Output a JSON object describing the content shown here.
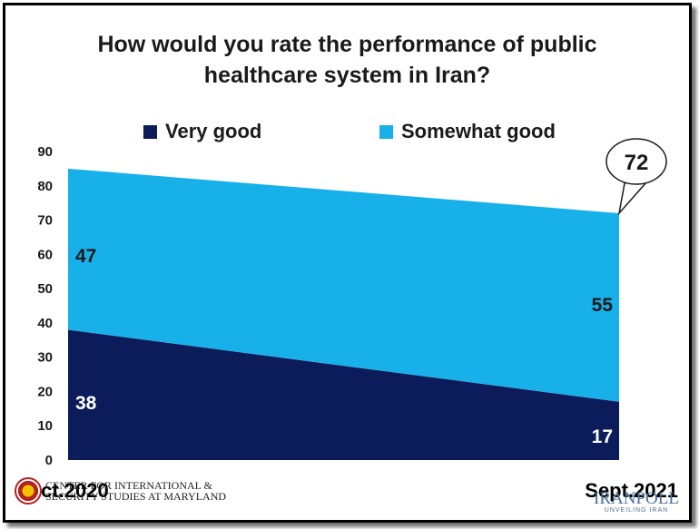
{
  "chart_data": {
    "type": "area",
    "title_lines": [
      "How would you rate the performance of public",
      "healthcare system in Iran?"
    ],
    "categories": [
      "Oct.2020",
      "Sept.2021"
    ],
    "series": [
      {
        "name": "Very good",
        "values": [
          38,
          17
        ],
        "labels": [
          "38",
          "17"
        ],
        "color": "#0c1c5a"
      },
      {
        "name": "Somewhat good",
        "values": [
          47,
          55
        ],
        "labels": [
          "47",
          "55"
        ],
        "color": "#18b0e8"
      }
    ],
    "stacked": true,
    "total_callout": {
      "category": "Sept.2021",
      "value": 72,
      "label": "72"
    },
    "ylim": [
      0,
      90
    ],
    "yticks": [
      "0",
      "10",
      "20",
      "30",
      "40",
      "50",
      "60",
      "70",
      "80",
      "90"
    ],
    "legend_position": "top",
    "grid": false
  },
  "logos": {
    "left_lines": [
      "CENTER FOR INTERNATIONAL &",
      "SECURITY STUDIES AT MARYLAND"
    ],
    "right_main": "IRANPOLL",
    "right_sub": "UNVEILING IRAN"
  }
}
